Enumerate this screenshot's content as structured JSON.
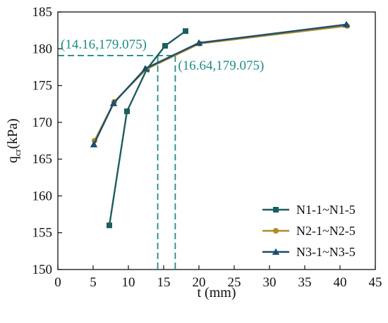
{
  "chart_data": {
    "type": "line",
    "xlabel": "t (mm)",
    "ylabel": "q",
    "ylabel_sub": "cr",
    "ylabel_unit": "(kPa)",
    "xlim": [
      0,
      45
    ],
    "ylim": [
      150,
      185
    ],
    "xticks": [
      0,
      5,
      10,
      15,
      20,
      25,
      30,
      35,
      40,
      45
    ],
    "yticks": [
      150,
      155,
      160,
      165,
      170,
      175,
      180,
      185
    ],
    "grid": false,
    "legend_position": "bottom-right",
    "series": [
      {
        "name": "N1-1~N1-5",
        "color": "#1d5e5e",
        "marker": "square",
        "points": [
          [
            7.3,
            156.0
          ],
          [
            9.8,
            171.5
          ],
          [
            12.6,
            177.2
          ],
          [
            15.2,
            180.4
          ],
          [
            18.1,
            182.4
          ]
        ]
      },
      {
        "name": "N2-1~N2-5",
        "color": "#b08a2a",
        "marker": "circle",
        "points": [
          [
            5.2,
            167.5
          ],
          [
            8.0,
            172.8
          ],
          [
            12.5,
            177.2
          ],
          [
            20.1,
            180.7
          ],
          [
            41.0,
            183.1
          ]
        ]
      },
      {
        "name": "N3-1~N3-5",
        "color": "#1b4e6e",
        "marker": "triangle",
        "points": [
          [
            5.1,
            167.0
          ],
          [
            7.9,
            172.6
          ],
          [
            12.4,
            177.3
          ],
          [
            20.0,
            180.8
          ],
          [
            40.9,
            183.3
          ]
        ]
      }
    ],
    "annotations": [
      {
        "text": "(14.16,179.075)",
        "x": 14.16,
        "y": 179.075
      },
      {
        "text": "(16.64,179.075)",
        "x": 16.64,
        "y": 179.075
      }
    ],
    "annotation_color": "#1f8c88"
  }
}
